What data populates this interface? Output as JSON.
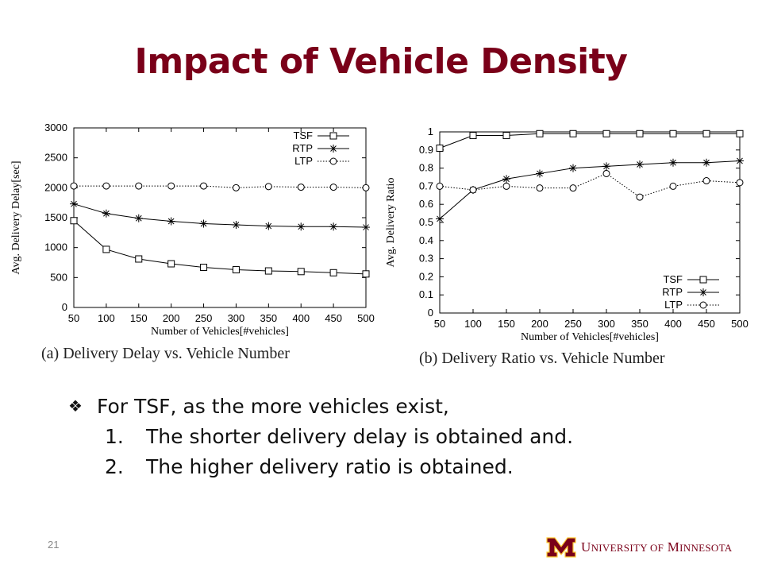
{
  "slide": {
    "title": "Impact of Vehicle Density",
    "page_number": "21",
    "bullet": "For TSF, as the more vehicles exist,",
    "items": [
      {
        "num": "1.",
        "text": "The shorter delivery delay is obtained and."
      },
      {
        "num": "2.",
        "text": "The higher delivery ratio is obtained."
      }
    ],
    "footer_logo_text": "University of Minnesota",
    "brand_color": "#7a0019"
  },
  "chart_data": [
    {
      "type": "line",
      "caption": "(a)  Delivery  Delay  vs.  Vehicle  Number",
      "xlabel": "Number of Vehicles[#vehicles]",
      "ylabel": "Avg. Delivery Delay[sec]",
      "x": [
        50,
        100,
        150,
        200,
        250,
        300,
        350,
        400,
        450,
        500
      ],
      "xlim": [
        50,
        500
      ],
      "ylim": [
        0,
        3000
      ],
      "yticks": [
        0,
        500,
        1000,
        1500,
        2000,
        2500,
        3000
      ],
      "legend_position": "top-right",
      "series": [
        {
          "name": "TSF",
          "marker": "square",
          "dash": "solid",
          "values": [
            1450,
            970,
            810,
            730,
            670,
            630,
            610,
            600,
            580,
            560
          ]
        },
        {
          "name": "RTP",
          "marker": "star",
          "dash": "solid",
          "values": [
            1730,
            1570,
            1490,
            1440,
            1400,
            1380,
            1360,
            1350,
            1350,
            1340
          ]
        },
        {
          "name": "LTP",
          "marker": "circle",
          "dash": "dotted",
          "values": [
            2030,
            2030,
            2030,
            2030,
            2030,
            2000,
            2020,
            2010,
            2010,
            2000
          ]
        }
      ]
    },
    {
      "type": "line",
      "caption": "(b)  Delivery  Ratio  vs.  Vehicle  Number",
      "xlabel": "Number of Vehicles[#vehicles]",
      "ylabel": "Avg. Delivery Ratio",
      "x": [
        50,
        100,
        150,
        200,
        250,
        300,
        350,
        400,
        450,
        500
      ],
      "xlim": [
        50,
        500
      ],
      "ylim": [
        0,
        1
      ],
      "yticks": [
        0,
        0.1,
        0.2,
        0.3,
        0.4,
        0.5,
        0.6,
        0.7,
        0.8,
        0.9,
        1
      ],
      "legend_position": "bottom-right",
      "series": [
        {
          "name": "TSF",
          "marker": "square",
          "dash": "solid",
          "values": [
            0.91,
            0.98,
            0.98,
            0.99,
            0.99,
            0.99,
            0.99,
            0.99,
            0.99,
            0.99
          ]
        },
        {
          "name": "RTP",
          "marker": "star",
          "dash": "solid",
          "values": [
            0.52,
            0.68,
            0.74,
            0.77,
            0.8,
            0.81,
            0.82,
            0.83,
            0.83,
            0.84
          ]
        },
        {
          "name": "LTP",
          "marker": "circle",
          "dash": "dotted",
          "values": [
            0.7,
            0.68,
            0.7,
            0.69,
            0.69,
            0.77,
            0.64,
            0.7,
            0.73,
            0.72
          ]
        }
      ]
    }
  ]
}
